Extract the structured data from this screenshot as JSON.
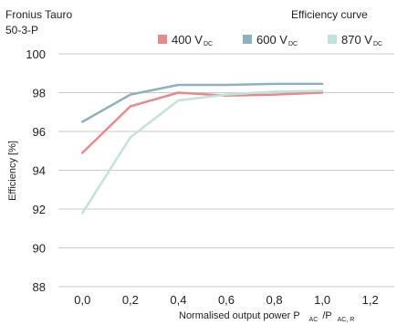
{
  "chart_data": {
    "type": "line",
    "product_line1": "Fronius Tauro",
    "product_line2": "50-3-P",
    "title": "Efficiency curve",
    "xlabel": {
      "main": "Normalised output power P",
      "sub1": "AC",
      "mid": "/P",
      "sub2": "AC, R"
    },
    "ylabel": "Efficiency [%]",
    "xlim": [
      -0.1,
      1.3
    ],
    "ylim": [
      88,
      100
    ],
    "x_ticks": [
      "0,0",
      "0,2",
      "0,4",
      "0,6",
      "0,8",
      "1,0",
      "1,2"
    ],
    "x_tick_values": [
      0.0,
      0.2,
      0.4,
      0.6,
      0.8,
      1.0,
      1.2
    ],
    "y_ticks": [
      "88",
      "90",
      "92",
      "94",
      "96",
      "98",
      "100"
    ],
    "y_tick_values": [
      88,
      90,
      92,
      94,
      96,
      98,
      100
    ],
    "grid": "horizontal",
    "legend_position": "top-right",
    "series": [
      {
        "name_main": "400 V",
        "name_sub": "DC",
        "color": "#e88a8a",
        "x": [
          0.0,
          0.2,
          0.4,
          0.6,
          0.8,
          1.0
        ],
        "y": [
          94.9,
          97.3,
          98.0,
          97.85,
          97.9,
          98.0
        ]
      },
      {
        "name_main": "600 V",
        "name_sub": "DC",
        "color": "#8fb1bc",
        "x": [
          0.0,
          0.2,
          0.4,
          0.6,
          0.8,
          1.0
        ],
        "y": [
          96.5,
          97.9,
          98.4,
          98.4,
          98.45,
          98.45
        ]
      },
      {
        "name_main": "870 V",
        "name_sub": "DC",
        "color": "#c4e2dc",
        "x": [
          0.0,
          0.2,
          0.4,
          0.6,
          0.8,
          1.0
        ],
        "y": [
          91.8,
          95.7,
          97.6,
          97.9,
          98.05,
          98.1
        ]
      }
    ]
  }
}
